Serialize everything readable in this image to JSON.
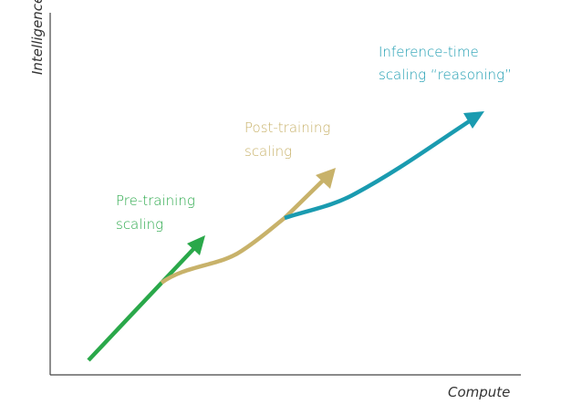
{
  "axes": {
    "x_label": "Compute",
    "y_label": "Intelligence"
  },
  "curves": [
    {
      "label_lines": [
        "Pre-training",
        "scaling"
      ]
    },
    {
      "label_lines": [
        "Post-training",
        "scaling"
      ]
    },
    {
      "label_lines": [
        "Inference-time",
        "scaling “reasoning”"
      ]
    }
  ]
}
